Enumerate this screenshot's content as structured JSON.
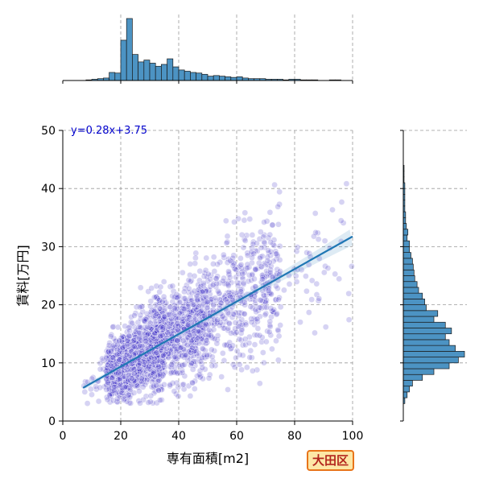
{
  "chart_data": {
    "type": "scatter",
    "xlabel": "専有面積[m2]",
    "ylabel": "賃料[万円]",
    "xlim": [
      0,
      100
    ],
    "ylim": [
      0,
      50
    ],
    "x_ticks": [
      "0",
      "20",
      "40",
      "60",
      "80",
      "100"
    ],
    "y_ticks": [
      "0",
      "10",
      "20",
      "30",
      "40",
      "50"
    ],
    "grid": true,
    "regression": {
      "equation": "y=0.28x+3.75",
      "slope": 0.28,
      "intercept": 3.75,
      "x_range": [
        7,
        100
      ]
    },
    "scatter_summary": {
      "x_range": [
        7,
        100
      ],
      "approx_points": 2500
    },
    "top_histogram": {
      "bin_width": 2,
      "bins_start": 8,
      "counts": [
        1,
        2,
        3,
        4,
        13,
        12,
        65,
        100,
        42,
        30,
        33,
        28,
        23,
        26,
        35,
        22,
        17,
        15,
        13,
        12,
        10,
        7,
        8,
        7,
        6,
        5,
        6,
        4,
        3,
        3,
        3,
        2,
        2,
        2,
        1,
        2,
        2,
        1,
        1,
        1,
        0,
        0,
        1,
        1,
        0,
        0
      ]
    },
    "right_histogram": {
      "bin_width": 1,
      "bins_start": 3,
      "counts": [
        0.02,
        0.05,
        0.08,
        0.12,
        0.25,
        0.4,
        0.6,
        0.72,
        0.8,
        0.68,
        0.6,
        0.55,
        0.63,
        0.55,
        0.4,
        0.45,
        0.3,
        0.28,
        0.25,
        0.2,
        0.18,
        0.15,
        0.14,
        0.13,
        0.12,
        0.1,
        0.08,
        0.08,
        0.05,
        0.06,
        0.04,
        0.03,
        0.03,
        0.02,
        0.02,
        0.02,
        0.02,
        0.02,
        0.01,
        0.01,
        0.01
      ]
    },
    "colors": {
      "points": "#4338ca",
      "regression": "#1f77b4",
      "hist": "#4c93c3",
      "equation": "#0000cc"
    }
  },
  "badge": {
    "text": "大田区"
  }
}
